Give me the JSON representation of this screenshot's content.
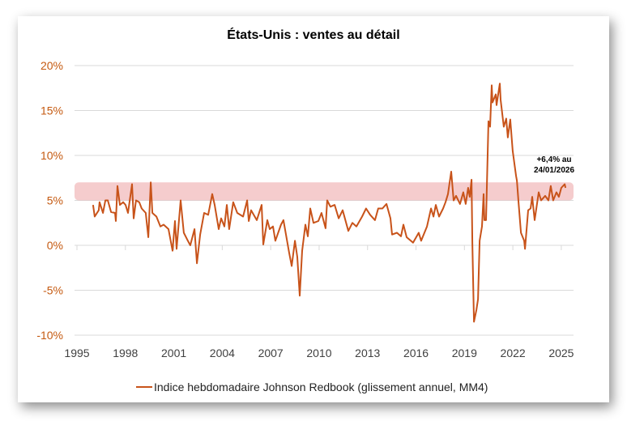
{
  "chart_data": {
    "type": "line",
    "title": "États-Unis : ventes au détail",
    "xlabel": "",
    "ylabel": "",
    "xlim": [
      1995,
      2025.6
    ],
    "ylim": [
      -10,
      20
    ],
    "x_ticks": [
      "1995",
      "1998",
      "2001",
      "2004",
      "2007",
      "2010",
      "2013",
      "2016",
      "2019",
      "2022",
      "2025"
    ],
    "y_ticks": [
      "20%",
      "15%",
      "10%",
      "5%",
      "0%",
      "-5%",
      "-10%"
    ],
    "grid": "horizontal",
    "legend_position": "bottom",
    "highlight_band": {
      "from": 5,
      "to": 7,
      "color": "#eeaaab"
    },
    "annotation": {
      "line1": "+6,4% au",
      "line2": "24/01/2026"
    },
    "colors": {
      "line": "#c8531a",
      "ytick": "#c55a11"
    },
    "series": [
      {
        "name": "Indice hebdomadaire Johnson Redbook (glissement annuel, MM4)",
        "points": [
          [
            1996.0,
            4.5
          ],
          [
            1996.1,
            3.2
          ],
          [
            1996.35,
            3.9
          ],
          [
            1996.4,
            4.8
          ],
          [
            1996.61,
            3.6
          ],
          [
            1996.76,
            5.0
          ],
          [
            1996.91,
            5.0
          ],
          [
            1997.11,
            3.7
          ],
          [
            1997.36,
            3.6
          ],
          [
            1997.41,
            2.7
          ],
          [
            1997.51,
            6.6
          ],
          [
            1997.66,
            4.5
          ],
          [
            1997.86,
            4.8
          ],
          [
            1998.01,
            4.5
          ],
          [
            1998.16,
            3.6
          ],
          [
            1998.41,
            6.8
          ],
          [
            1998.51,
            3.0
          ],
          [
            1998.66,
            5.0
          ],
          [
            1998.86,
            4.8
          ],
          [
            1999.01,
            4.1
          ],
          [
            1999.26,
            3.6
          ],
          [
            1999.42,
            0.9
          ],
          [
            1999.57,
            7.0
          ],
          [
            1999.67,
            3.6
          ],
          [
            1999.92,
            3.2
          ],
          [
            2000.17,
            2.1
          ],
          [
            2000.37,
            2.3
          ],
          [
            2000.67,
            1.8
          ],
          [
            2000.92,
            -0.6
          ],
          [
            2001.07,
            2.7
          ],
          [
            2001.17,
            -0.4
          ],
          [
            2001.42,
            5.0
          ],
          [
            2001.62,
            1.4
          ],
          [
            2001.87,
            0.5
          ],
          [
            2002.02,
            0.0
          ],
          [
            2002.28,
            1.8
          ],
          [
            2002.43,
            -2.0
          ],
          [
            2002.63,
            1.2
          ],
          [
            2002.88,
            3.6
          ],
          [
            2003.13,
            3.4
          ],
          [
            2003.38,
            5.7
          ],
          [
            2003.53,
            4.5
          ],
          [
            2003.78,
            1.8
          ],
          [
            2003.93,
            3.0
          ],
          [
            2004.13,
            2.1
          ],
          [
            2004.28,
            4.5
          ],
          [
            2004.43,
            1.8
          ],
          [
            2004.68,
            4.8
          ],
          [
            2004.93,
            3.6
          ],
          [
            2005.29,
            3.2
          ],
          [
            2005.54,
            5.0
          ],
          [
            2005.64,
            2.7
          ],
          [
            2005.79,
            3.9
          ],
          [
            2006.14,
            2.8
          ],
          [
            2006.44,
            4.5
          ],
          [
            2006.54,
            0.1
          ],
          [
            2006.79,
            2.8
          ],
          [
            2006.94,
            1.8
          ],
          [
            2007.14,
            2.1
          ],
          [
            2007.29,
            0.5
          ],
          [
            2007.64,
            2.3
          ],
          [
            2007.79,
            2.8
          ],
          [
            2008.15,
            -0.9
          ],
          [
            2008.3,
            -2.3
          ],
          [
            2008.5,
            0.5
          ],
          [
            2008.65,
            -1.3
          ],
          [
            2008.8,
            -5.6
          ],
          [
            2008.95,
            -0.6
          ],
          [
            2009.15,
            2.3
          ],
          [
            2009.3,
            1.0
          ],
          [
            2009.45,
            4.1
          ],
          [
            2009.65,
            2.5
          ],
          [
            2009.95,
            2.7
          ],
          [
            2010.15,
            3.6
          ],
          [
            2010.4,
            1.9
          ],
          [
            2010.5,
            5.0
          ],
          [
            2010.7,
            4.3
          ],
          [
            2010.96,
            4.5
          ],
          [
            2011.21,
            3.0
          ],
          [
            2011.46,
            3.9
          ],
          [
            2011.81,
            1.6
          ],
          [
            2012.06,
            2.5
          ],
          [
            2012.31,
            2.1
          ],
          [
            2012.66,
            3.2
          ],
          [
            2012.91,
            4.1
          ],
          [
            2013.16,
            3.4
          ],
          [
            2013.46,
            2.8
          ],
          [
            2013.66,
            4.1
          ],
          [
            2013.92,
            4.1
          ],
          [
            2014.17,
            4.6
          ],
          [
            2014.42,
            3.0
          ],
          [
            2014.52,
            1.2
          ],
          [
            2014.82,
            1.4
          ],
          [
            2015.07,
            1.0
          ],
          [
            2015.22,
            2.3
          ],
          [
            2015.42,
            0.9
          ],
          [
            2015.82,
            0.3
          ],
          [
            2016.17,
            1.4
          ],
          [
            2016.32,
            0.5
          ],
          [
            2016.68,
            2.1
          ],
          [
            2016.93,
            4.1
          ],
          [
            2017.08,
            3.2
          ],
          [
            2017.23,
            4.5
          ],
          [
            2017.43,
            3.2
          ],
          [
            2017.68,
            4.1
          ],
          [
            2017.83,
            4.8
          ],
          [
            2017.98,
            5.7
          ],
          [
            2018.18,
            8.2
          ],
          [
            2018.33,
            5.0
          ],
          [
            2018.48,
            5.5
          ],
          [
            2018.73,
            4.6
          ],
          [
            2018.93,
            5.9
          ],
          [
            2019.08,
            4.6
          ],
          [
            2019.23,
            6.4
          ],
          [
            2019.33,
            5.4
          ],
          [
            2019.44,
            7.3
          ],
          [
            2019.49,
            0.3
          ],
          [
            2019.59,
            -8.5
          ],
          [
            2019.74,
            -7.2
          ],
          [
            2019.84,
            -6.0
          ],
          [
            2019.94,
            0.5
          ],
          [
            2020.09,
            2.1
          ],
          [
            2020.19,
            5.7
          ],
          [
            2020.24,
            2.8
          ],
          [
            2020.34,
            2.8
          ],
          [
            2020.49,
            13.8
          ],
          [
            2020.59,
            13.2
          ],
          [
            2020.69,
            17.8
          ],
          [
            2020.74,
            15.9
          ],
          [
            2020.94,
            16.8
          ],
          [
            2020.99,
            15.6
          ],
          [
            2021.19,
            18.0
          ],
          [
            2021.24,
            16.2
          ],
          [
            2021.44,
            13.2
          ],
          [
            2021.59,
            14.1
          ],
          [
            2021.69,
            12.0
          ],
          [
            2021.84,
            14.0
          ],
          [
            2021.99,
            10.5
          ],
          [
            2022.2,
            7.7
          ],
          [
            2022.25,
            7.2
          ],
          [
            2022.35,
            4.8
          ],
          [
            2022.5,
            1.4
          ],
          [
            2022.7,
            0.5
          ],
          [
            2022.75,
            -0.4
          ],
          [
            2022.95,
            3.9
          ],
          [
            2023.1,
            4.1
          ],
          [
            2023.2,
            5.4
          ],
          [
            2023.35,
            2.8
          ],
          [
            2023.6,
            5.9
          ],
          [
            2023.75,
            5.0
          ],
          [
            2024.0,
            5.5
          ],
          [
            2024.2,
            5.0
          ],
          [
            2024.35,
            6.6
          ],
          [
            2024.5,
            5.0
          ],
          [
            2024.7,
            5.9
          ],
          [
            2024.85,
            5.4
          ],
          [
            2025.0,
            6.4
          ],
          [
            2025.21,
            6.8
          ],
          [
            2025.26,
            6.4
          ]
        ]
      }
    ]
  }
}
